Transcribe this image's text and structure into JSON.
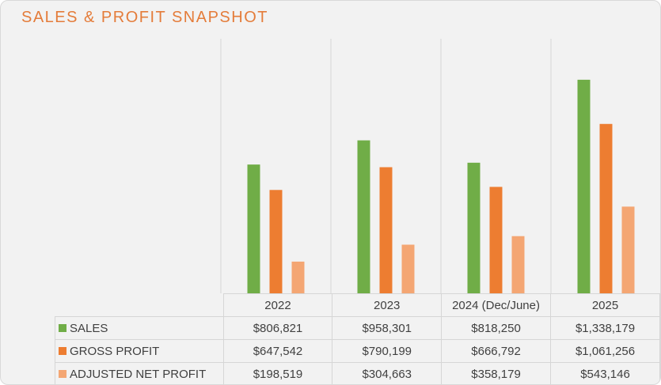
{
  "chart_data": {
    "type": "bar",
    "title": "SALES & PROFIT SNAPSHOT",
    "categories": [
      "2022",
      "2023",
      "2024 (Dec/June)",
      "2025"
    ],
    "series": [
      {
        "name": "SALES",
        "color": "#70ad47",
        "values": [
          806821,
          958301,
          818250,
          1338179
        ],
        "labels": [
          "$806,821",
          "$958,301",
          "$818,250",
          "$1,338,179"
        ]
      },
      {
        "name": "GROSS PROFIT",
        "color": "#ed7d31",
        "values": [
          647542,
          790199,
          666792,
          1061256
        ],
        "labels": [
          "$647,542",
          "$790,199",
          "$666,792",
          "$1,061,256"
        ]
      },
      {
        "name": "ADJUSTED NET PROFIT",
        "color": "#f4a673",
        "values": [
          198519,
          304663,
          358179,
          543146
        ],
        "labels": [
          "$198,519",
          "$304,663",
          "$358,179",
          "$543,146"
        ]
      }
    ],
    "ylim": [
      0,
      1610000
    ],
    "grid": false,
    "legend": "data-table"
  }
}
